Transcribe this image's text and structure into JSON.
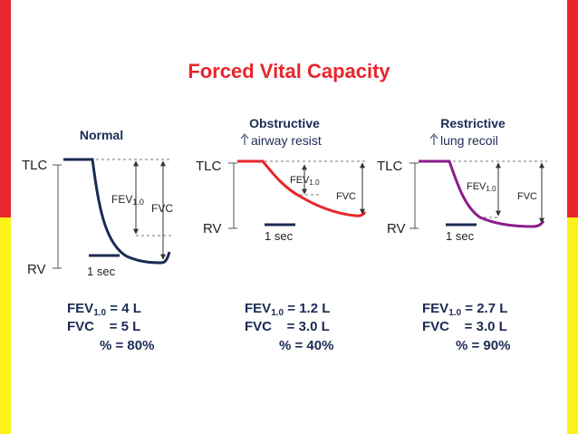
{
  "title": "Forced Vital Capacity",
  "colors": {
    "frame_top": "#e8262b",
    "frame_bottom": "#fdf21b",
    "title": "#e8262b",
    "normal": "#1b2b55",
    "obstructive": "#e8262b",
    "restrictive": "#8b1e8b",
    "axis": "#555555"
  },
  "icons": [
    "up-arrow-icon"
  ],
  "panels": [
    {
      "name": "normal",
      "heading": "Normal",
      "subheading": "",
      "tlc": "TLC",
      "rv": "RV",
      "fev_label": "FEV",
      "fev_sub": "1.0",
      "fvc_label": "FVC",
      "time_label": "1 sec",
      "stats": {
        "fev_line_prefix": "FEV",
        "fev_line_sub": "1.0",
        "fev_line_value": " = 4 L",
        "fvc_line": "FVC    = 5 L",
        "pct_line": "% = 80%"
      }
    },
    {
      "name": "obstructive",
      "heading": "Obstructive",
      "subheading": "airway resist",
      "tlc": "TLC",
      "rv": "RV",
      "fev_label": "FEV",
      "fev_sub": "1.0",
      "fvc_label": "FVC",
      "time_label": "1 sec",
      "stats": {
        "fev_line_prefix": "FEV",
        "fev_line_sub": "1.0",
        "fev_line_value": " = 1.2 L",
        "fvc_line": "FVC    = 3.0 L",
        "pct_line": "% = 40%"
      }
    },
    {
      "name": "restrictive",
      "heading": "Restrictive",
      "subheading": "lung recoil",
      "tlc": "TLC",
      "rv": "RV",
      "fev_label": "FEV",
      "fev_sub": "1.0",
      "fvc_label": "FVC",
      "time_label": "1 sec",
      "stats": {
        "fev_line_prefix": "FEV",
        "fev_line_sub": "1.0",
        "fev_line_value": " = 2.7 L",
        "fvc_line": "FVC    = 3.0 L",
        "pct_line": "% = 90%"
      }
    }
  ]
}
